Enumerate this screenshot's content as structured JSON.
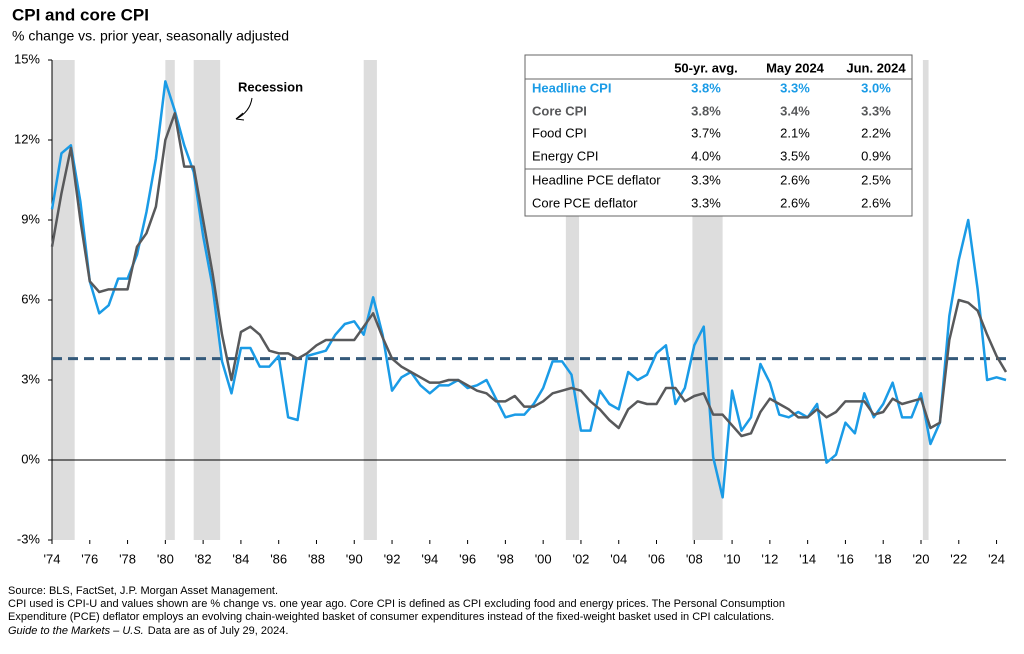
{
  "chart_data": {
    "type": "line",
    "title": "CPI and core CPI",
    "subtitle": "% change vs. prior year, seasonally adjusted",
    "annotation": "Recession",
    "xlim": [
      1974,
      2024.5
    ],
    "ylim": [
      -3,
      15
    ],
    "yticks": [
      {
        "value": -3,
        "label": "-3%"
      },
      {
        "value": 0,
        "label": "0%"
      },
      {
        "value": 3,
        "label": "3%"
      },
      {
        "value": 6,
        "label": "6%"
      },
      {
        "value": 9,
        "label": "9%"
      },
      {
        "value": 12,
        "label": "12%"
      },
      {
        "value": 15,
        "label": "15%"
      }
    ],
    "xticks": [
      {
        "value": 1974,
        "label": "'74"
      },
      {
        "value": 1976,
        "label": "'76"
      },
      {
        "value": 1978,
        "label": "'78"
      },
      {
        "value": 1980,
        "label": "'80"
      },
      {
        "value": 1982,
        "label": "'82"
      },
      {
        "value": 1984,
        "label": "'84"
      },
      {
        "value": 1986,
        "label": "'86"
      },
      {
        "value": 1988,
        "label": "'88"
      },
      {
        "value": 1990,
        "label": "'90"
      },
      {
        "value": 1992,
        "label": "'92"
      },
      {
        "value": 1994,
        "label": "'94"
      },
      {
        "value": 1996,
        "label": "'96"
      },
      {
        "value": 1998,
        "label": "'98"
      },
      {
        "value": 2000,
        "label": "'00"
      },
      {
        "value": 2002,
        "label": "'02"
      },
      {
        "value": 2004,
        "label": "'04"
      },
      {
        "value": 2006,
        "label": "'06"
      },
      {
        "value": 2008,
        "label": "'08"
      },
      {
        "value": 2010,
        "label": "'10"
      },
      {
        "value": 2012,
        "label": "'12"
      },
      {
        "value": 2014,
        "label": "'14"
      },
      {
        "value": 2016,
        "label": "'16"
      },
      {
        "value": 2018,
        "label": "'18"
      },
      {
        "value": 2020,
        "label": "'20"
      },
      {
        "value": 2022,
        "label": "'22"
      },
      {
        "value": 2024,
        "label": "'24"
      }
    ],
    "recessions": [
      [
        1974,
        1975.2
      ],
      [
        1980,
        1980.5
      ],
      [
        1981.5,
        1982.9
      ],
      [
        1990.5,
        1991.2
      ],
      [
        2001.2,
        2001.9
      ],
      [
        2007.9,
        2009.5
      ],
      [
        2020.1,
        2020.4
      ]
    ],
    "reference_line": {
      "value": 3.8,
      "color": "#34597a"
    },
    "x": [
      1974,
      1974.5,
      1975,
      1975.5,
      1976,
      1976.5,
      1977,
      1977.5,
      1978,
      1978.5,
      1979,
      1979.5,
      1980,
      1980.5,
      1981,
      1981.5,
      1982,
      1982.5,
      1983,
      1983.5,
      1984,
      1984.5,
      1985,
      1985.5,
      1986,
      1986.5,
      1987,
      1987.5,
      1988,
      1988.5,
      1989,
      1989.5,
      1990,
      1990.5,
      1991,
      1991.5,
      1992,
      1992.5,
      1993,
      1993.5,
      1994,
      1994.5,
      1995,
      1995.5,
      1996,
      1996.5,
      1997,
      1997.5,
      1998,
      1998.5,
      1999,
      1999.5,
      2000,
      2000.5,
      2001,
      2001.5,
      2002,
      2002.5,
      2003,
      2003.5,
      2004,
      2004.5,
      2005,
      2005.5,
      2006,
      2006.5,
      2007,
      2007.5,
      2008,
      2008.5,
      2009,
      2009.5,
      2010,
      2010.5,
      2011,
      2011.5,
      2012,
      2012.5,
      2013,
      2013.5,
      2014,
      2014.5,
      2015,
      2015.5,
      2016,
      2016.5,
      2017,
      2017.5,
      2018,
      2018.5,
      2019,
      2019.5,
      2020,
      2020.5,
      2021,
      2021.5,
      2022,
      2022.5,
      2023,
      2023.5,
      2024,
      2024.5
    ],
    "series": [
      {
        "name": "Headline CPI",
        "color": "#1a9be6",
        "values": [
          9.4,
          11.5,
          11.8,
          9.7,
          6.7,
          5.5,
          5.8,
          6.8,
          6.8,
          7.7,
          9.3,
          11.3,
          14.2,
          13.1,
          11.8,
          10.8,
          8.4,
          6.5,
          3.7,
          2.5,
          4.2,
          4.2,
          3.5,
          3.5,
          3.9,
          1.6,
          1.5,
          3.9,
          4.0,
          4.1,
          4.7,
          5.1,
          5.2,
          4.7,
          6.1,
          4.7,
          2.6,
          3.1,
          3.3,
          2.8,
          2.5,
          2.8,
          2.8,
          3.0,
          2.7,
          2.8,
          3.0,
          2.3,
          1.6,
          1.7,
          1.7,
          2.1,
          2.7,
          3.7,
          3.7,
          3.2,
          1.1,
          1.1,
          2.6,
          2.1,
          1.9,
          3.3,
          3.0,
          3.2,
          4.0,
          4.3,
          2.1,
          2.7,
          4.3,
          5.0,
          0.1,
          -1.4,
          2.6,
          1.1,
          1.6,
          3.6,
          2.9,
          1.7,
          1.6,
          1.8,
          1.6,
          2.1,
          -0.1,
          0.2,
          1.4,
          1.0,
          2.5,
          1.6,
          2.1,
          2.9,
          1.6,
          1.6,
          2.5,
          0.6,
          1.4,
          5.4,
          7.5,
          9.0,
          6.4,
          3.0,
          3.1,
          3.0
        ]
      },
      {
        "name": "Core CPI",
        "color": "#58595b",
        "values": [
          8.0,
          10.0,
          11.7,
          9.0,
          6.7,
          6.3,
          6.4,
          6.4,
          6.4,
          8.0,
          8.5,
          9.5,
          12.0,
          13.0,
          11.0,
          11.0,
          9.0,
          7.0,
          4.7,
          3.0,
          4.8,
          5.0,
          4.7,
          4.1,
          4.0,
          4.0,
          3.8,
          4.0,
          4.3,
          4.5,
          4.5,
          4.5,
          4.5,
          5.0,
          5.5,
          4.6,
          3.8,
          3.5,
          3.3,
          3.1,
          2.9,
          2.9,
          3.0,
          3.0,
          2.8,
          2.6,
          2.5,
          2.2,
          2.2,
          2.4,
          2.0,
          2.0,
          2.2,
          2.5,
          2.6,
          2.7,
          2.6,
          2.2,
          1.9,
          1.5,
          1.2,
          1.9,
          2.2,
          2.1,
          2.1,
          2.7,
          2.7,
          2.2,
          2.4,
          2.5,
          1.7,
          1.7,
          1.3,
          0.9,
          1.0,
          1.8,
          2.3,
          2.1,
          1.9,
          1.6,
          1.6,
          1.9,
          1.6,
          1.8,
          2.2,
          2.2,
          2.2,
          1.7,
          1.8,
          2.3,
          2.1,
          2.2,
          2.3,
          1.2,
          1.4,
          4.5,
          6.0,
          5.9,
          5.6,
          4.7,
          3.9,
          3.3
        ]
      }
    ],
    "table": {
      "columns": [
        "50-yr. avg.",
        "May 2024",
        "Jun. 2024"
      ],
      "rows": [
        {
          "label": "Headline CPI",
          "cells": [
            "3.8%",
            "3.3%",
            "3.0%"
          ],
          "color": "#1a9be6",
          "bold": true
        },
        {
          "label": "Core CPI",
          "cells": [
            "3.8%",
            "3.4%",
            "3.3%"
          ],
          "color": "#58595b",
          "bold": true
        },
        {
          "label": "Food CPI",
          "cells": [
            "3.7%",
            "2.1%",
            "2.2%"
          ],
          "color": "#000000",
          "bold": false
        },
        {
          "label": "Energy CPI",
          "cells": [
            "4.0%",
            "3.5%",
            "0.9%"
          ],
          "color": "#000000",
          "bold": false
        },
        {
          "label": "Headline PCE deflator",
          "cells": [
            "3.3%",
            "2.6%",
            "2.5%"
          ],
          "color": "#000000",
          "bold": false
        },
        {
          "label": "Core PCE deflator",
          "cells": [
            "3.3%",
            "2.6%",
            "2.6%"
          ],
          "color": "#000000",
          "bold": false
        }
      ]
    },
    "footnotes": {
      "source": "Source: BLS, FactSet, J.P. Morgan Asset Management.",
      "note_line1": "CPI used is CPI-U and values shown are % change vs. one year ago. Core CPI is defined as CPI excluding food and energy prices. The Personal Consumption",
      "note_line2": "Expenditure (PCE) deflator employs an evolving chain-weighted basket of consumer expenditures instead of the fixed-weight basket used in CPI calculations.",
      "guide": "Guide to the Markets – U.S.",
      "asof": "Data are as of July 29, 2024."
    }
  }
}
